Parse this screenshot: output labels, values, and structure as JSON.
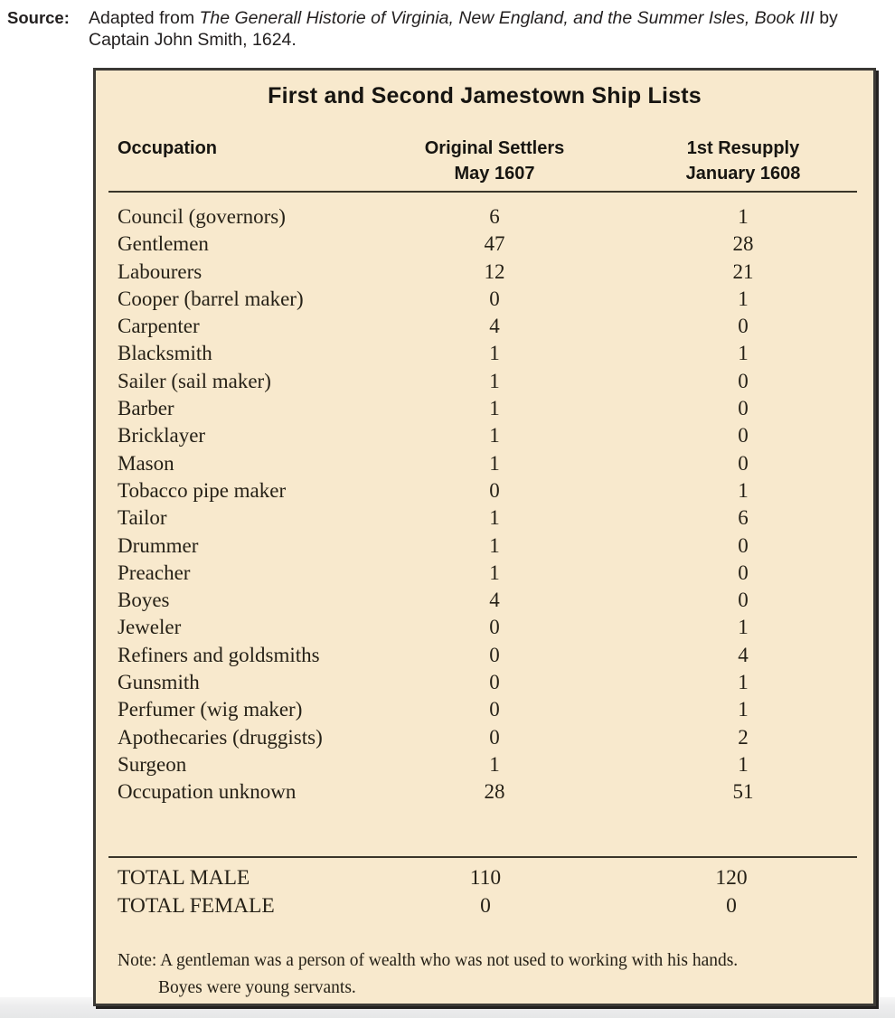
{
  "source": {
    "label": "Source:",
    "prefix": "Adapted from ",
    "work_title": "The Generall Historie of Virginia, New England, and the Summer Isles, Book III",
    "suffix": " by Captain John Smith, 1624."
  },
  "table": {
    "title": "First and Second Jamestown Ship Lists",
    "colors": {
      "panel_background": "#f8e9cd",
      "panel_border": "#3b3935",
      "text": "#262117"
    },
    "columns": {
      "occupation": "Occupation",
      "col1_line1": "Original Settlers",
      "col1_line2": "May 1607",
      "col2_line1": "1st Resupply",
      "col2_line2": "January 1608"
    },
    "rows": [
      {
        "occupation": "Council (governors)",
        "original": "6",
        "resupply": "1"
      },
      {
        "occupation": "Gentlemen",
        "original": "47",
        "resupply": "28"
      },
      {
        "occupation": "Labourers",
        "original": "12",
        "resupply": "21"
      },
      {
        "occupation": "Cooper (barrel maker)",
        "original": "0",
        "resupply": "1"
      },
      {
        "occupation": "Carpenter",
        "original": "4",
        "resupply": "0"
      },
      {
        "occupation": "Blacksmith",
        "original": "1",
        "resupply": "1"
      },
      {
        "occupation": "Sailer (sail maker)",
        "original": "1",
        "resupply": "0"
      },
      {
        "occupation": "Barber",
        "original": "1",
        "resupply": "0"
      },
      {
        "occupation": "Bricklayer",
        "original": "1",
        "resupply": "0"
      },
      {
        "occupation": "Mason",
        "original": "1",
        "resupply": "0"
      },
      {
        "occupation": "Tobacco pipe maker",
        "original": "0",
        "resupply": "1"
      },
      {
        "occupation": "Tailor",
        "original": "1",
        "resupply": "6"
      },
      {
        "occupation": "Drummer",
        "original": "1",
        "resupply": "0"
      },
      {
        "occupation": "Preacher",
        "original": "1",
        "resupply": "0"
      },
      {
        "occupation": "Boyes",
        "original": "4",
        "resupply": "0"
      },
      {
        "occupation": "Jeweler",
        "original": "0",
        "resupply": "1"
      },
      {
        "occupation": "Refiners and goldsmiths",
        "original": "0",
        "resupply": "4"
      },
      {
        "occupation": "Gunsmith",
        "original": "0",
        "resupply": "1"
      },
      {
        "occupation": "Perfumer (wig maker)",
        "original": "0",
        "resupply": "1"
      },
      {
        "occupation": "Apothecaries (druggists)",
        "original": "0",
        "resupply": "2"
      },
      {
        "occupation": "Surgeon",
        "original": "1",
        "resupply": "1"
      },
      {
        "occupation": "Occupation unknown",
        "original": "28",
        "resupply": "51"
      }
    ],
    "totals": [
      {
        "label": "TOTAL MALE",
        "original": "110",
        "resupply": "120"
      },
      {
        "label": "TOTAL FEMALE",
        "original": "0",
        "resupply": "0"
      }
    ],
    "note_line1": "Note: A gentleman was a person of wealth who was not used to working with his hands.",
    "note_line2": "Boyes were young servants."
  }
}
